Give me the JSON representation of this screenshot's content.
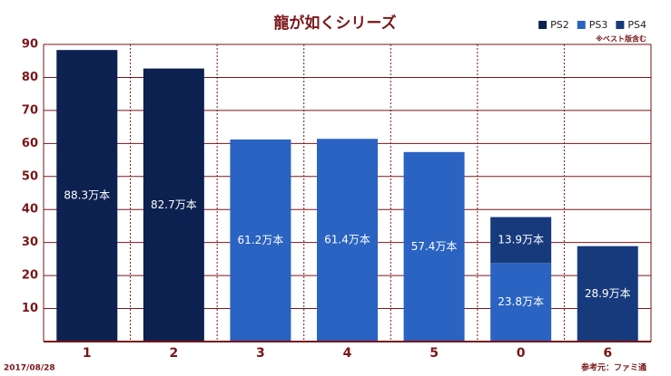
{
  "chart_data": {
    "type": "stacked_bar",
    "title": "龍が如くシリーズ",
    "subtitle": "※ベスト版含む",
    "categories": [
      "1",
      "2",
      "3",
      "4",
      "5",
      "0",
      "6"
    ],
    "series": [
      {
        "name": "PS2",
        "color": "#0c2150",
        "values": [
          88.3,
          82.7,
          null,
          null,
          null,
          null,
          null
        ],
        "value_labels": [
          "88.3万本",
          "82.7万本",
          null,
          null,
          null,
          null,
          null
        ]
      },
      {
        "name": "PS3",
        "color": "#2a63c1",
        "values": [
          null,
          null,
          61.2,
          61.4,
          57.4,
          23.8,
          null
        ],
        "value_labels": [
          null,
          null,
          "61.2万本",
          "61.4万本",
          "57.4万本",
          "23.8万本",
          null
        ]
      },
      {
        "name": "PS4",
        "color": "#173a7d",
        "values": [
          null,
          null,
          null,
          null,
          null,
          13.9,
          28.9
        ],
        "value_labels": [
          null,
          null,
          null,
          null,
          null,
          "13.9万本",
          "28.9万本"
        ]
      }
    ],
    "ylim": [
      0,
      90
    ],
    "yticks": [
      10,
      20,
      30,
      40,
      50,
      60,
      70,
      80,
      90
    ],
    "grid": true,
    "legend": "top-right",
    "date": "2017/08/28",
    "source": "参考元：ファミ通"
  }
}
